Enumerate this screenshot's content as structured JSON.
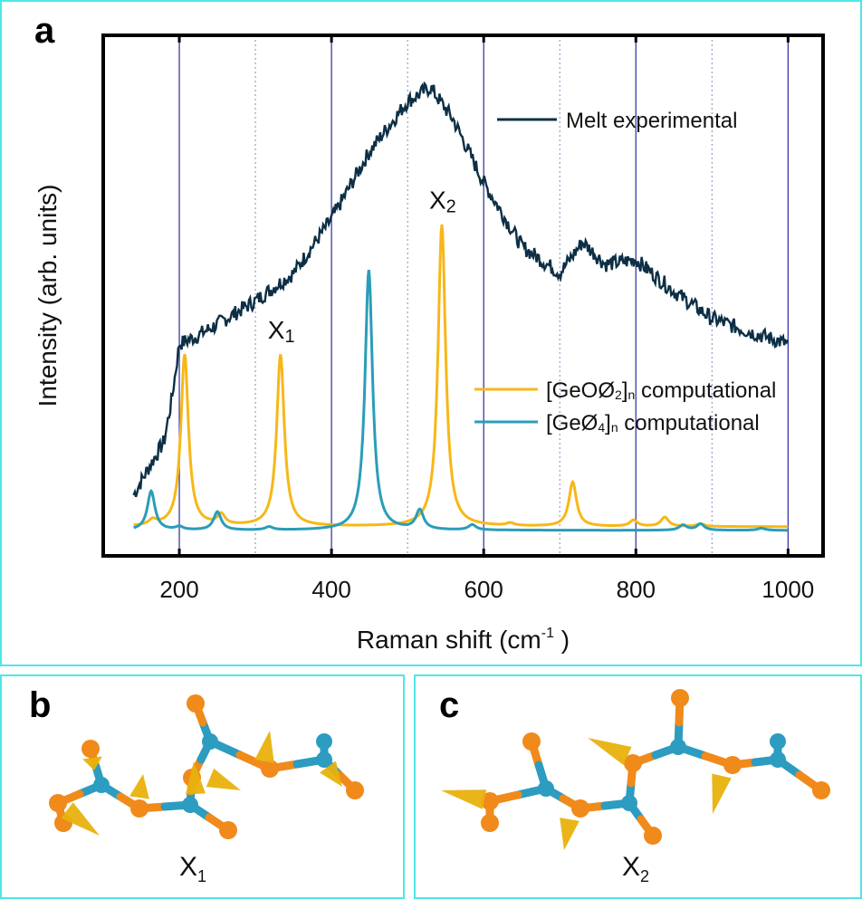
{
  "panels": {
    "a": "a",
    "b": "b",
    "c": "c"
  },
  "chart_data": {
    "type": "line",
    "title": "",
    "xlabel": "Raman shift (cm-1)",
    "xlabel_main": "Raman shift (cm",
    "xlabel_sup": "-1",
    "xlabel_end": " )",
    "ylabel": "Intensity (arb. units)",
    "xlim": [
      100,
      1046
    ],
    "ylim": [
      0,
      1
    ],
    "xticks": [
      200,
      400,
      600,
      800,
      1000
    ],
    "grid_solid": [
      200,
      400,
      600,
      800,
      1000
    ],
    "grid_dotted": [
      300,
      500,
      700,
      900
    ],
    "legend_placement": "right",
    "annotations": [
      {
        "text": "X",
        "sub": "1",
        "x": 333,
        "y": 0.4
      },
      {
        "text": "X",
        "sub": "2",
        "x": 545,
        "y": 0.65
      }
    ],
    "series": [
      {
        "name": "Melt experimental",
        "legend": "Melt experimental",
        "color": "#0d2f45",
        "x": [
          140,
          160,
          180,
          190,
          200,
          220,
          250,
          300,
          350,
          400,
          450,
          500,
          530,
          560,
          600,
          650,
          700,
          730,
          760,
          800,
          850,
          900,
          950,
          1000
        ],
        "y": [
          0.117,
          0.17,
          0.22,
          0.3,
          0.407,
          0.42,
          0.445,
          0.49,
          0.543,
          0.647,
          0.777,
          0.873,
          0.9,
          0.838,
          0.717,
          0.595,
          0.543,
          0.603,
          0.56,
          0.569,
          0.508,
          0.456,
          0.43,
          0.407
        ]
      },
      {
        "name": "[GeOØ2]n computational",
        "legend_main": "[GeOØ",
        "legend_sub": "2",
        "legend_mid": "]",
        "legend_sub2": "n",
        "legend_end": " computational",
        "color": "#f7b718",
        "baseline": 0.056,
        "peaks": [
          [
            165,
            0.01
          ],
          [
            207,
            0.33
          ],
          [
            255,
            0.02
          ],
          [
            333,
            0.33
          ],
          [
            545,
            0.58
          ],
          [
            635,
            0.005
          ],
          [
            717,
            0.085
          ],
          [
            797,
            0.012
          ],
          [
            838,
            0.018
          ],
          [
            885,
            0.005
          ]
        ]
      },
      {
        "name": "[GeØ4]n computational",
        "legend_main": "[GeØ",
        "legend_sub": "4",
        "legend_mid": "]",
        "legend_sub2": "n",
        "legend_end": " computational",
        "color": "#2a9db8",
        "baseline": 0.049,
        "peaks": [
          [
            163,
            0.075
          ],
          [
            200,
            0.006
          ],
          [
            250,
            0.035
          ],
          [
            318,
            0.006
          ],
          [
            449,
            0.5
          ],
          [
            516,
            0.037
          ],
          [
            585,
            0.01
          ],
          [
            862,
            0.01
          ],
          [
            885,
            0.012
          ],
          [
            965,
            0.004
          ]
        ]
      }
    ]
  },
  "captions": {
    "b_main": "X",
    "b_sub": "1",
    "c_main": "X",
    "c_sub": "2"
  }
}
